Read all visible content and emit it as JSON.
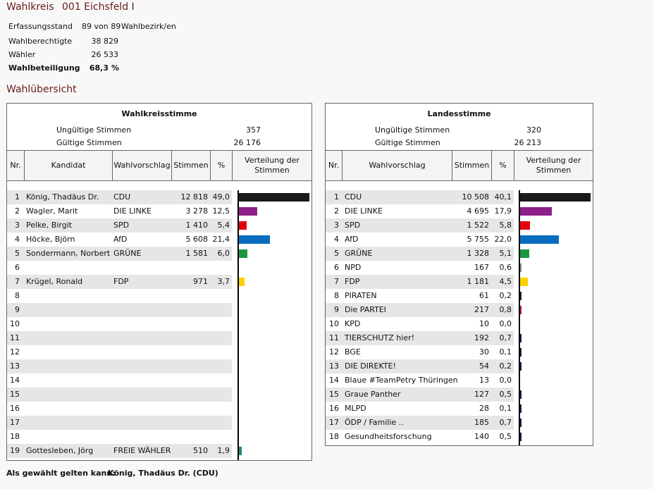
{
  "header": {
    "label": "Wahlkreis",
    "name": "001 Eichsfeld I"
  },
  "stats": [
    {
      "label": "Erfassungsstand",
      "value": "89 von 89",
      "suffix": "Wahlbezirk/en"
    },
    {
      "label": "Wahlberechtigte",
      "value": "38 829"
    },
    {
      "label": "Wähler",
      "value": "26 533"
    },
    {
      "label": "Wahlbeteiligung",
      "value": "68,3",
      "suffix": "%"
    }
  ],
  "section_title": "Wahlübersicht",
  "wk": {
    "title": "Wahlkreisstimme",
    "invalid_label": "Ungültige Stimmen",
    "invalid": "357",
    "valid_label": "Gültige Stimmen",
    "valid": "26 176",
    "columns": [
      "Nr.",
      "Kandidat",
      "Wahlvorschlag",
      "Stimmen",
      "%",
      "Verteilung der Stimmen"
    ],
    "rows": [
      {
        "nr": "1",
        "name": "König, Thadäus Dr.",
        "party": "CDU",
        "votes": "12 818",
        "pct": "49,0",
        "value": 49.0,
        "color": "#1a1a1a"
      },
      {
        "nr": "2",
        "name": "Wagler, Marit",
        "party": "DIE LINKE",
        "votes": "3 278",
        "pct": "12,5",
        "value": 12.5,
        "color": "#8e1f8a"
      },
      {
        "nr": "3",
        "name": "Pelke, Birgit",
        "party": "SPD",
        "votes": "1 410",
        "pct": "5,4",
        "value": 5.4,
        "color": "#e3000f"
      },
      {
        "nr": "4",
        "name": "Höcke, Björn",
        "party": "AfD",
        "votes": "5 608",
        "pct": "21,4",
        "value": 21.4,
        "color": "#0a6dbf"
      },
      {
        "nr": "5",
        "name": "Sondermann, Norbert",
        "party": "GRÜNE",
        "votes": "1 581",
        "pct": "6,0",
        "value": 6.0,
        "color": "#1a9641"
      },
      {
        "nr": "6",
        "name": "",
        "party": "",
        "votes": "",
        "pct": "",
        "value": 0,
        "color": ""
      },
      {
        "nr": "7",
        "name": "Krügel, Ronald",
        "party": "FDP",
        "votes": "971",
        "pct": "3,7",
        "value": 3.7,
        "color": "#ffd000"
      },
      {
        "nr": "8"
      },
      {
        "nr": "9"
      },
      {
        "nr": "10"
      },
      {
        "nr": "11"
      },
      {
        "nr": "12"
      },
      {
        "nr": "13"
      },
      {
        "nr": "14"
      },
      {
        "nr": "15"
      },
      {
        "nr": "16"
      },
      {
        "nr": "17"
      },
      {
        "nr": "18"
      },
      {
        "nr": "19",
        "name": "Gottesleben, Jörg",
        "party": "FREIE WÄHLER",
        "votes": "510",
        "pct": "1,9",
        "value": 1.9,
        "color": "#1a8a7a"
      }
    ]
  },
  "ls": {
    "title": "Landesstimme",
    "invalid_label": "Ungültige Stimmen",
    "invalid": "320",
    "valid_label": "Gültige Stimmen",
    "valid": "26 213",
    "columns": [
      "Nr.",
      "Wahlvorschlag",
      "Stimmen",
      "%",
      "Verteilung der Stimmen"
    ],
    "rows": [
      {
        "nr": "1",
        "party": "CDU",
        "votes": "10 508",
        "pct": "40,1",
        "value": 40.1,
        "color": "#1a1a1a"
      },
      {
        "nr": "2",
        "party": "DIE LINKE",
        "votes": "4 695",
        "pct": "17,9",
        "value": 17.9,
        "color": "#8e1f8a"
      },
      {
        "nr": "3",
        "party": "SPD",
        "votes": "1 522",
        "pct": "5,8",
        "value": 5.8,
        "color": "#e3000f"
      },
      {
        "nr": "4",
        "party": "AfD",
        "votes": "5 755",
        "pct": "22,0",
        "value": 22.0,
        "color": "#0a6dbf"
      },
      {
        "nr": "5",
        "party": "GRÜNE",
        "votes": "1 328",
        "pct": "5,1",
        "value": 5.1,
        "color": "#1a9641"
      },
      {
        "nr": "6",
        "party": "NPD",
        "votes": "167",
        "pct": "0,6",
        "value": 0.6,
        "color": "#888888"
      },
      {
        "nr": "7",
        "party": "FDP",
        "votes": "1 181",
        "pct": "4,5",
        "value": 4.5,
        "color": "#ffd000"
      },
      {
        "nr": "8",
        "party": "PIRATEN",
        "votes": "61",
        "pct": "0,2",
        "value": 0.2,
        "color": "#1a1a4a"
      },
      {
        "nr": "9",
        "party": "Die PARTEI",
        "votes": "217",
        "pct": "0,8",
        "value": 0.8,
        "color": "#b5134b"
      },
      {
        "nr": "10",
        "party": "KPD",
        "votes": "10",
        "pct": "0,0",
        "value": 0.0,
        "color": "#1a1a4a"
      },
      {
        "nr": "11",
        "party": "TIERSCHUTZ hier!",
        "votes": "192",
        "pct": "0,7",
        "value": 0.7,
        "color": "#1a1a4a"
      },
      {
        "nr": "12",
        "party": "BGE",
        "votes": "30",
        "pct": "0,1",
        "value": 0.1,
        "color": "#1a1a4a"
      },
      {
        "nr": "13",
        "party": "DIE DIREKTE!",
        "votes": "54",
        "pct": "0,2",
        "value": 0.2,
        "color": "#1a1a4a"
      },
      {
        "nr": "14",
        "party": "Blaue #TeamPetry Thüringen",
        "votes": "13",
        "pct": "0,0",
        "value": 0.0,
        "color": "#1a1a4a"
      },
      {
        "nr": "15",
        "party": "Graue Panther",
        "votes": "127",
        "pct": "0,5",
        "value": 0.5,
        "color": "#1a1a4a"
      },
      {
        "nr": "16",
        "party": "MLPD",
        "votes": "28",
        "pct": "0,1",
        "value": 0.1,
        "color": "#1a1a4a"
      },
      {
        "nr": "17",
        "party": "ÖDP / Familie ..",
        "votes": "185",
        "pct": "0,7",
        "value": 0.7,
        "color": "#1a1a4a"
      },
      {
        "nr": "18",
        "party": "Gesundheitsforschung",
        "votes": "140",
        "pct": "0,5",
        "value": 0.5,
        "color": "#1a1a4a"
      }
    ]
  },
  "footer": {
    "label": "Als gewählt gelten kann:",
    "value": "König, Thadäus Dr. (CDU)"
  }
}
